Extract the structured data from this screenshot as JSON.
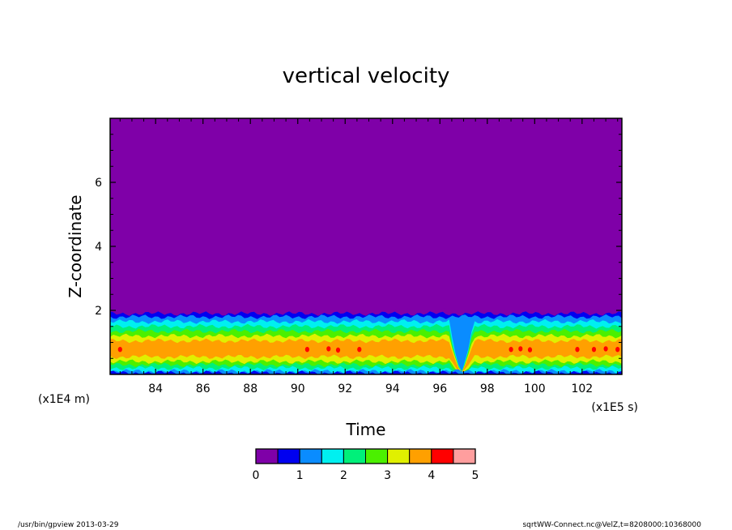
{
  "chart_data": {
    "type": "heatmap",
    "title": "vertical velocity",
    "xlabel": "Time",
    "ylabel": "Z-coordinate",
    "x_unit": "(x1E5 s)",
    "y_unit": "(x1E4 m)",
    "xlim": [
      82.08,
      103.68
    ],
    "ylim": [
      0,
      8
    ],
    "x_ticks": [
      84,
      86,
      88,
      90,
      92,
      94,
      96,
      98,
      100,
      102
    ],
    "y_ticks": [
      2,
      4,
      6
    ],
    "colorbar": {
      "ticks": [
        0,
        1,
        2,
        3,
        4,
        5
      ],
      "levels": [
        0,
        0.5,
        1,
        1.5,
        2,
        2.5,
        3,
        3.5,
        4,
        4.5,
        5
      ],
      "colors": [
        "#7f00a8",
        "#0000f0",
        "#0a8cff",
        "#00f0f0",
        "#00f07a",
        "#4bf000",
        "#e0f000",
        "#ffa000",
        "#ff0000",
        "#ff9e9e"
      ]
    },
    "profile": [
      {
        "z_top": 2.0,
        "value": 0.25
      },
      {
        "z_top": 1.9,
        "value": 0.75
      },
      {
        "z_top": 1.8,
        "value": 1.25
      },
      {
        "z_top": 1.65,
        "value": 1.75
      },
      {
        "z_top": 1.5,
        "value": 2.25
      },
      {
        "z_top": 1.35,
        "value": 2.75
      },
      {
        "z_top": 1.2,
        "value": 3.25
      },
      {
        "z_top": 1.05,
        "value": 3.75
      },
      {
        "z_top": 0.55,
        "value": 3.25
      },
      {
        "z_top": 0.4,
        "value": 2.75
      },
      {
        "z_top": 0.3,
        "value": 2.25
      },
      {
        "z_top": 0.2,
        "value": 1.75
      },
      {
        "z_top": 0.1,
        "value": 1.25
      },
      {
        "z_top": 0.05,
        "value": 0.75
      }
    ],
    "dip_time": 96.9,
    "peak_spots": [
      {
        "x": 82.5,
        "z": 0.78
      },
      {
        "x": 90.4,
        "z": 0.78
      },
      {
        "x": 91.3,
        "z": 0.8
      },
      {
        "x": 91.7,
        "z": 0.76
      },
      {
        "x": 92.6,
        "z": 0.78
      },
      {
        "x": 99.0,
        "z": 0.78
      },
      {
        "x": 99.4,
        "z": 0.8
      },
      {
        "x": 99.8,
        "z": 0.77
      },
      {
        "x": 101.8,
        "z": 0.78
      },
      {
        "x": 102.5,
        "z": 0.78
      },
      {
        "x": 103.0,
        "z": 0.8
      },
      {
        "x": 103.5,
        "z": 0.78
      }
    ]
  },
  "footer": {
    "left": "/usr/bin/gpview   2013-03-29",
    "right": "sqrtWW-Connect.nc@VelZ,t=8208000:10368000"
  }
}
